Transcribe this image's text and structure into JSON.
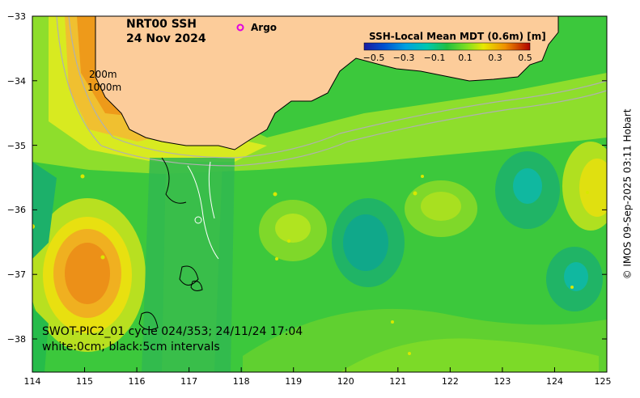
{
  "title": {
    "line1": "NRT00 SSH",
    "line2": "24 Nov 2024"
  },
  "legend": {
    "symbol": "o",
    "label": "Argo",
    "symbol_color": "#e000e0"
  },
  "colorbar": {
    "title": "SSH-Local Mean MDT (0.6m) [m]",
    "ticks": [
      "−0.5",
      "−0.3",
      "−0.1",
      "0.1",
      "0.3",
      "0.5"
    ],
    "colors": [
      "#1a1aa0",
      "#0050d0",
      "#00a0e0",
      "#00c8b0",
      "#20c060",
      "#40d030",
      "#a0e020",
      "#e8e800",
      "#f0a000",
      "#e05000",
      "#b00000"
    ]
  },
  "isobath_labels": [
    "200m",
    "1000m"
  ],
  "swot_caption": {
    "line1": "SWOT-PIC2_01 cycle 024/353; 24/11/24 17:04",
    "line2": "white:0cm; black:5cm intervals"
  },
  "credit": "© IMOS 09-Sep-2025 03:11 Hobart",
  "x_ticks": [
    "114",
    "115",
    "116",
    "117",
    "118",
    "119",
    "120",
    "121",
    "122",
    "123",
    "124",
    "125"
  ],
  "y_ticks": [
    "−33",
    "−34",
    "−35",
    "−36",
    "−37",
    "−38"
  ],
  "colors": {
    "land": "#fccc9a",
    "coastline": "#000000",
    "isobath": "#b0b0b0"
  }
}
